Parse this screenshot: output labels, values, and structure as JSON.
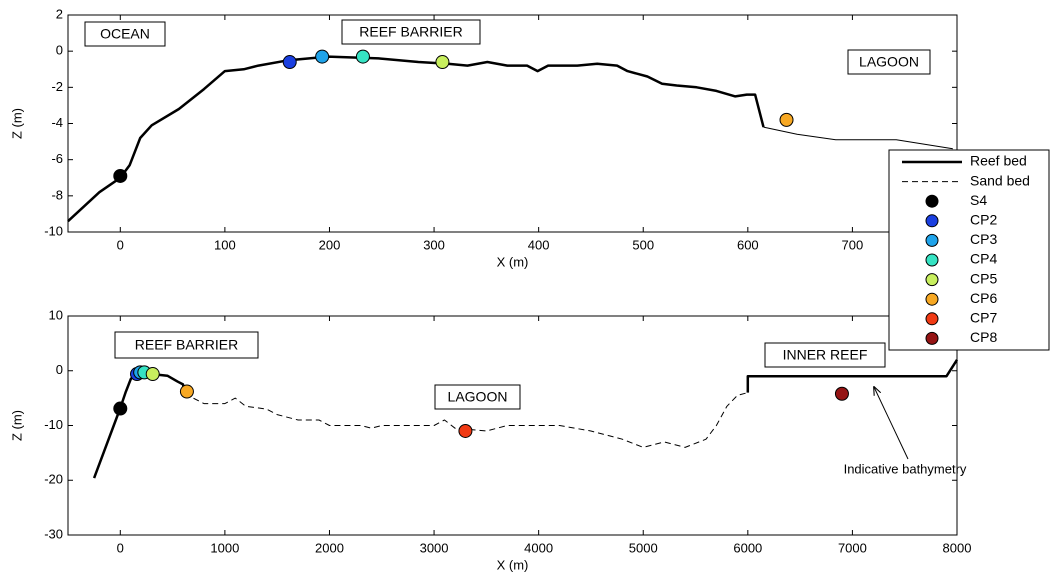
{
  "chart_data": [
    {
      "type": "line",
      "xlabel": "X (m)",
      "ylabel": "Z (m)",
      "xlim": [
        -50,
        800
      ],
      "ylim": [
        -10,
        2
      ],
      "xticks": [
        0,
        100,
        200,
        300,
        400,
        500,
        600,
        700
      ],
      "yticks": [
        -10,
        -8,
        -6,
        -4,
        -2,
        0,
        2
      ],
      "series": [
        {
          "type": "line",
          "color": "#000000",
          "width": 2.5,
          "dash": false,
          "x": [
            -50,
            -20,
            0,
            9,
            19,
            30,
            56,
            80,
            100,
            118,
            132,
            161,
            199,
            247,
            285,
            313,
            332,
            351,
            370,
            389,
            399,
            409,
            437,
            456,
            475,
            485,
            504,
            518,
            532,
            551,
            570,
            588,
            599,
            607,
            615
          ],
          "y": [
            -9.4,
            -7.8,
            -7.0,
            -6.3,
            -4.8,
            -4.1,
            -3.2,
            -2.1,
            -1.1,
            -1.0,
            -0.8,
            -0.5,
            -0.3,
            -0.4,
            -0.6,
            -0.7,
            -0.8,
            -0.6,
            -0.8,
            -0.8,
            -1.1,
            -0.8,
            -0.8,
            -0.7,
            -0.8,
            -1.1,
            -1.4,
            -1.8,
            -1.9,
            -2.0,
            -2.2,
            -2.5,
            -2.4,
            -2.4,
            -4.2
          ]
        },
        {
          "type": "line",
          "color": "#000000",
          "width": 1,
          "dash": false,
          "x": [
            615,
            647,
            684,
            742,
            796
          ],
          "y": [
            -4.2,
            -4.6,
            -4.9,
            -4.9,
            -5.4
          ]
        },
        {
          "type": "scatter",
          "color": "#000000",
          "x": [
            0
          ],
          "y": [
            -6.9
          ]
        },
        {
          "type": "scatter",
          "color": "#1a3fe0",
          "x": [
            162
          ],
          "y": [
            -0.6
          ]
        },
        {
          "type": "scatter",
          "color": "#1fa3ea",
          "x": [
            193
          ],
          "y": [
            -0.3
          ]
        },
        {
          "type": "scatter",
          "color": "#36e3c3",
          "x": [
            232
          ],
          "y": [
            -0.3
          ]
        },
        {
          "type": "scatter",
          "color": "#c8ef5e",
          "x": [
            308
          ],
          "y": [
            -0.6
          ]
        },
        {
          "type": "scatter",
          "color": "#f7a823",
          "x": [
            637
          ],
          "y": [
            -3.8
          ]
        }
      ],
      "annotations": [
        "OCEAN",
        "REEF BARRIER",
        "LAGOON"
      ]
    },
    {
      "type": "line",
      "xlabel": "X (m)",
      "ylabel": "Z (m)",
      "xlim": [
        -500,
        8000
      ],
      "ylim": [
        -30,
        10
      ],
      "xticks": [
        0,
        1000,
        2000,
        3000,
        4000,
        5000,
        6000,
        7000,
        8000
      ],
      "yticks": [
        -30,
        -20,
        -10,
        0,
        10
      ],
      "series": [
        {
          "name": "Reef bed",
          "type": "line",
          "color": "#000000",
          "width": 2.5,
          "dash": false,
          "x": [
            -250,
            0,
            50,
            100,
            150,
            250,
            350,
            450,
            550,
            600,
            615,
            null,
            6000,
            6000,
            7900,
            8000
          ],
          "y": [
            -19.6,
            -6.8,
            -4,
            -1.5,
            -0.5,
            -0.3,
            -0.7,
            -0.9,
            -2,
            -2.5,
            -4.2,
            null,
            -4,
            -1,
            -1,
            2
          ]
        },
        {
          "name": "Sand bed",
          "type": "line",
          "color": "#000000",
          "width": 1,
          "dash": true,
          "x": [
            615,
            800,
            1000,
            1100,
            1200,
            1400,
            1500,
            1700,
            1900,
            2000,
            2300,
            2400,
            2500,
            3000,
            3100,
            3200,
            3500,
            3700,
            4200,
            4500,
            4800,
            5000,
            5200,
            5400,
            5600,
            5700,
            5800,
            5900,
            6000
          ],
          "y": [
            -4.2,
            -6,
            -6,
            -5,
            -6.5,
            -7,
            -8,
            -9,
            -9,
            -10,
            -10,
            -10.5,
            -10,
            -10,
            -9,
            -10.5,
            -11,
            -10,
            -10,
            -11,
            -12.5,
            -14,
            -13,
            -14,
            -12.5,
            -10,
            -6.5,
            -4.5,
            -4
          ]
        },
        {
          "name": "S4",
          "type": "scatter",
          "color": "#000000",
          "x": [
            0
          ],
          "y": [
            -6.9
          ]
        },
        {
          "name": "CP2",
          "type": "scatter",
          "color": "#1a3fe0",
          "x": [
            160
          ],
          "y": [
            -0.6
          ]
        },
        {
          "name": "CP3",
          "type": "scatter",
          "color": "#1fa3ea",
          "x": [
            190
          ],
          "y": [
            -0.3
          ]
        },
        {
          "name": "CP4",
          "type": "scatter",
          "color": "#36e3c3",
          "x": [
            230
          ],
          "y": [
            -0.3
          ]
        },
        {
          "name": "CP5",
          "type": "scatter",
          "color": "#c8ef5e",
          "x": [
            310
          ],
          "y": [
            -0.6
          ]
        },
        {
          "name": "CP6",
          "type": "scatter",
          "color": "#f7a823",
          "x": [
            637
          ],
          "y": [
            -3.8
          ]
        },
        {
          "name": "CP7",
          "type": "scatter",
          "color": "#f03a14",
          "x": [
            3300
          ],
          "y": [
            -11
          ]
        },
        {
          "name": "CP8",
          "type": "scatter",
          "color": "#951414",
          "x": [
            6900
          ],
          "y": [
            -4.2
          ]
        }
      ],
      "annotations": [
        "REEF BARRIER",
        "LAGOON",
        "INNER REEF",
        "Indicative bathymetry"
      ]
    }
  ]
}
